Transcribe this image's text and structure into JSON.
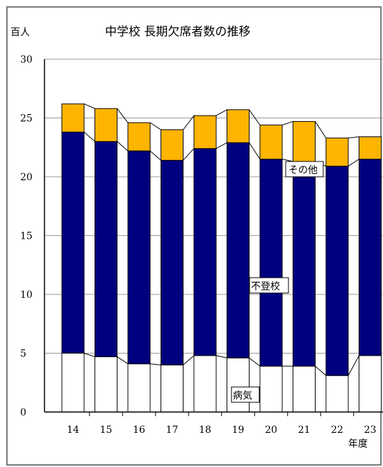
{
  "chart_data": {
    "type": "bar",
    "stacked": true,
    "title": "中学校 長期欠席者数の推移",
    "ylabel": "百人",
    "xlabel": "年度",
    "ylim": [
      0,
      30
    ],
    "yticks": [
      0,
      5,
      10,
      15,
      20,
      25,
      30
    ],
    "categories": [
      "14",
      "15",
      "16",
      "17",
      "18",
      "19",
      "20",
      "21",
      "22",
      "23"
    ],
    "series": [
      {
        "name": "病気",
        "color": "#ffffff",
        "values": [
          5.0,
          4.7,
          4.1,
          4.0,
          4.8,
          4.6,
          3.9,
          3.9,
          3.1,
          4.8
        ]
      },
      {
        "name": "不登校",
        "color": "#00007f",
        "values": [
          18.8,
          18.3,
          18.1,
          17.4,
          17.6,
          18.3,
          17.6,
          17.4,
          17.8,
          16.7
        ]
      },
      {
        "name": "その他",
        "color": "#ffb400",
        "values": [
          2.4,
          2.8,
          2.4,
          2.6,
          2.8,
          2.8,
          2.9,
          3.4,
          2.4,
          1.9
        ]
      }
    ],
    "grid": true
  }
}
